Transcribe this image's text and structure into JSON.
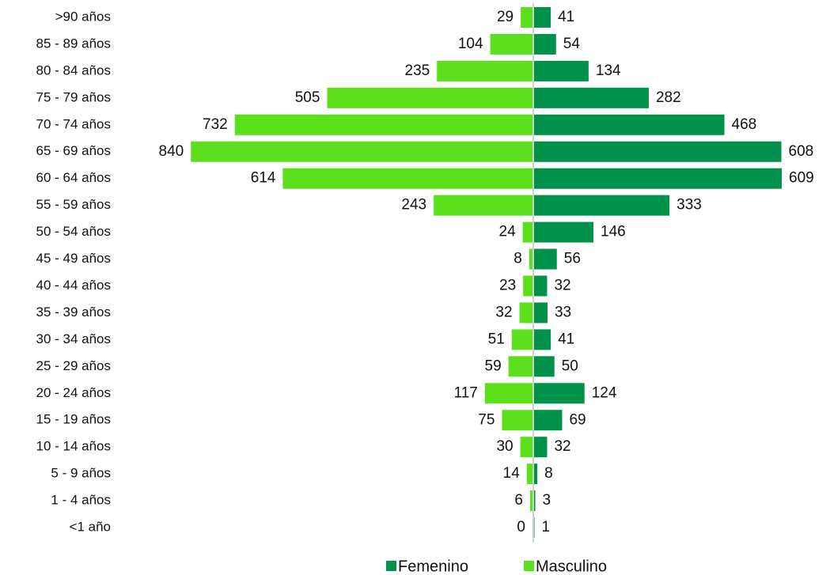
{
  "chart_data": {
    "type": "bar",
    "categories": [
      ">90 años",
      "85 - 89 años",
      "80 - 84 años",
      "75 - 79 años",
      "70 - 74 años",
      "65 - 69 años",
      "60 - 64 años",
      "55 - 59 años",
      "50 - 54 años",
      "45 - 49 años",
      "40 - 44 años",
      "35 - 39 años",
      "30 - 34 años",
      "25 - 29 años",
      "20 - 24 años",
      "15 - 19 años",
      "10 - 14 años",
      "5 - 9 años",
      "1 - 4 años",
      "<1 año"
    ],
    "series": [
      {
        "name": "Femenino",
        "color": "#00914a",
        "values": [
          41,
          54,
          134,
          282,
          468,
          608,
          609,
          333,
          146,
          56,
          32,
          33,
          41,
          50,
          124,
          69,
          32,
          8,
          3,
          1
        ]
      },
      {
        "name": "Masculino",
        "color": "#5ce01c",
        "values": [
          29,
          104,
          235,
          505,
          732,
          840,
          614,
          243,
          24,
          8,
          23,
          32,
          51,
          59,
          117,
          75,
          30,
          14,
          6,
          0
        ]
      }
    ]
  }
}
